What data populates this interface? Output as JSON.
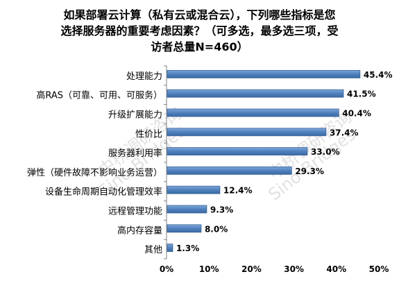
{
  "chart_data": {
    "type": "bar",
    "orientation": "horizontal",
    "title_lines": [
      "如果部署云计算（私有云或混合云），下列哪些指标是您",
      "选择服务器的重要考虑因素？（可多选，最多选三项，受",
      "访者总量N=460）"
    ],
    "categories": [
      "处理能力",
      "高RAS（可靠、可用、可服务）",
      "升级扩展能力",
      "性价比",
      "服务器利用率",
      "弹性（硬件故障不影响业务运营）",
      "设备生命周期自动化管理效率",
      "远程管理功能",
      "高内存容量",
      "其他"
    ],
    "values": [
      45.4,
      41.5,
      40.4,
      37.4,
      33.0,
      29.3,
      12.4,
      9.3,
      8.0,
      1.3
    ],
    "value_labels": [
      "45.4%",
      "41.5%",
      "40.4%",
      "37.4%",
      "33.0%",
      "29.3%",
      "12.4%",
      "9.3%",
      "8.0%",
      "1.3%"
    ],
    "xlim": [
      0,
      50
    ],
    "xticks": [
      "0%",
      "10%",
      "20%",
      "30%",
      "40%",
      "50%"
    ],
    "grid": false,
    "bar_color": "#4f81bd"
  },
  "watermarks": [
    "中桥调研咨询",
    "Sino-Bridges",
    "中桥调研咨询",
    "Sino-Bridges"
  ]
}
